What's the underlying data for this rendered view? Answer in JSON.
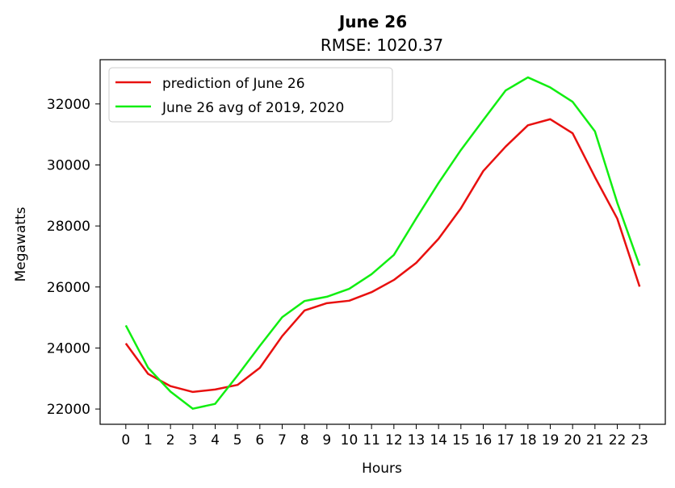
{
  "chart_data": {
    "type": "line",
    "title": "June 26",
    "subtitle": "RMSE: 1020.37",
    "xlabel": "Hours",
    "ylabel": "Megawatts",
    "x": [
      0,
      1,
      2,
      3,
      4,
      5,
      6,
      7,
      8,
      9,
      10,
      11,
      12,
      13,
      14,
      15,
      16,
      17,
      18,
      19,
      20,
      21,
      22,
      23
    ],
    "x_ticks": [
      "0",
      "1",
      "2",
      "3",
      "4",
      "5",
      "6",
      "7",
      "8",
      "9",
      "10",
      "11",
      "12",
      "13",
      "14",
      "15",
      "16",
      "17",
      "18",
      "19",
      "20",
      "21",
      "22",
      "23"
    ],
    "y_ticks": [
      22000,
      24000,
      26000,
      28000,
      30000,
      32000
    ],
    "y_tick_labels": [
      "22000",
      "24000",
      "26000",
      "28000",
      "30000",
      "32000"
    ],
    "xlim": [
      -1.15,
      24.15
    ],
    "ylim": [
      21500,
      33450
    ],
    "grid": false,
    "legend_position": "upper-left",
    "series": [
      {
        "name": "prediction of June 26",
        "color": "#e8100f",
        "values": [
          24150,
          23150,
          22750,
          22560,
          22640,
          22790,
          23350,
          24390,
          25230,
          25470,
          25550,
          25830,
          26230,
          26790,
          27580,
          28580,
          29800,
          30600,
          31300,
          31500,
          31040,
          29600,
          28240,
          26010
        ]
      },
      {
        "name": "June 26 avg of 2019, 2020",
        "color": "#11ee11",
        "values": [
          24740,
          23350,
          22570,
          22010,
          22170,
          23100,
          24070,
          25010,
          25540,
          25680,
          25940,
          26420,
          27050,
          28250,
          29410,
          30490,
          31470,
          32440,
          32870,
          32540,
          32070,
          31100,
          28760,
          26700
        ]
      }
    ]
  }
}
